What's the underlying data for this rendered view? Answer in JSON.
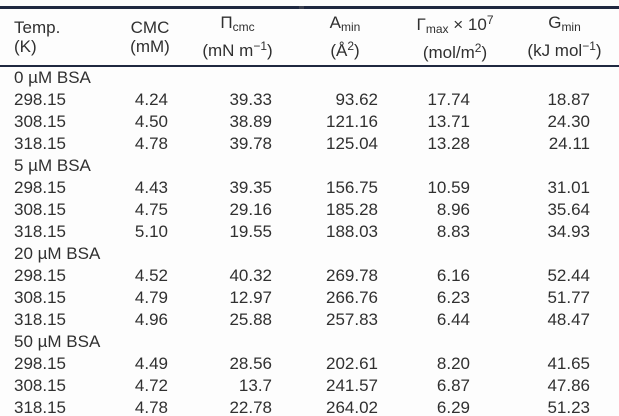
{
  "page": {
    "background": "#fdfdfd"
  },
  "colors": {
    "rule": "#1f2840",
    "text": "#303030"
  },
  "table": {
    "columns": [
      {
        "id": "temp",
        "line1": [
          {
            "t": "Temp."
          }
        ],
        "line2": [
          {
            "t": "(K)"
          }
        ]
      },
      {
        "id": "cmc",
        "line1": [
          {
            "t": "CMC"
          }
        ],
        "line2": [
          {
            "t": "(mM)"
          }
        ]
      },
      {
        "id": "pi-cmc",
        "line1": [
          {
            "t": "Π"
          },
          {
            "t": "cmc",
            "style": "sub"
          }
        ],
        "line2": [
          {
            "t": "(mN m"
          },
          {
            "t": "−1",
            "style": "sup"
          },
          {
            "t": ")"
          }
        ]
      },
      {
        "id": "a-min",
        "line1": [
          {
            "t": "A"
          },
          {
            "t": "min",
            "style": "sub"
          }
        ],
        "line2": [
          {
            "t": "(Å"
          },
          {
            "t": "2",
            "style": "sup"
          },
          {
            "t": ")"
          }
        ]
      },
      {
        "id": "gamma-max",
        "line1": [
          {
            "t": "Γ"
          },
          {
            "t": "max",
            "style": "sub"
          },
          {
            "t": " × 10"
          },
          {
            "t": "7",
            "style": "sup"
          }
        ],
        "line2": [
          {
            "t": "(mol/m"
          },
          {
            "t": "2",
            "style": "sup"
          },
          {
            "t": ")"
          }
        ]
      },
      {
        "id": "g-min",
        "line1": [
          {
            "t": "G"
          },
          {
            "t": "min",
            "style": "sub"
          }
        ],
        "line2": [
          {
            "t": "(kJ mol"
          },
          {
            "t": "−1",
            "style": "sup"
          },
          {
            "t": ")"
          }
        ]
      }
    ],
    "groups": [
      {
        "label": "0 µM BSA",
        "rows": [
          [
            "298.15",
            "4.24",
            "39.33",
            "93.62",
            "17.74",
            "18.87"
          ],
          [
            "308.15",
            "4.50",
            "38.89",
            "121.16",
            "13.71",
            "24.30"
          ],
          [
            "318.15",
            "4.78",
            "39.78",
            "125.04",
            "13.28",
            "24.11"
          ]
        ]
      },
      {
        "label": "5 µM BSA",
        "rows": [
          [
            "298.15",
            "4.43",
            "39.35",
            "156.75",
            "10.59",
            "31.01"
          ],
          [
            "308.15",
            "4.75",
            "29.16",
            "185.28",
            "8.96",
            "35.64"
          ],
          [
            "318.15",
            "5.10",
            "19.55",
            "188.03",
            "8.83",
            "34.93"
          ]
        ]
      },
      {
        "label": "20 µM BSA",
        "rows": [
          [
            "298.15",
            "4.52",
            "40.32",
            "269.78",
            "6.16",
            "52.44"
          ],
          [
            "308.15",
            "4.79",
            "12.97",
            "266.76",
            "6.23",
            "51.77"
          ],
          [
            "318.15",
            "4.96",
            "25.88",
            "257.83",
            "6.44",
            "48.47"
          ]
        ]
      },
      {
        "label": "50 µM BSA",
        "rows": [
          [
            "298.15",
            "4.49",
            "28.56",
            "202.61",
            "8.20",
            "41.65"
          ],
          [
            "308.15",
            "4.72",
            "13.7",
            "241.57",
            "6.87",
            "47.86"
          ],
          [
            "318.15",
            "4.78",
            "22.78",
            "264.02",
            "6.29",
            "51.23"
          ]
        ]
      }
    ]
  }
}
